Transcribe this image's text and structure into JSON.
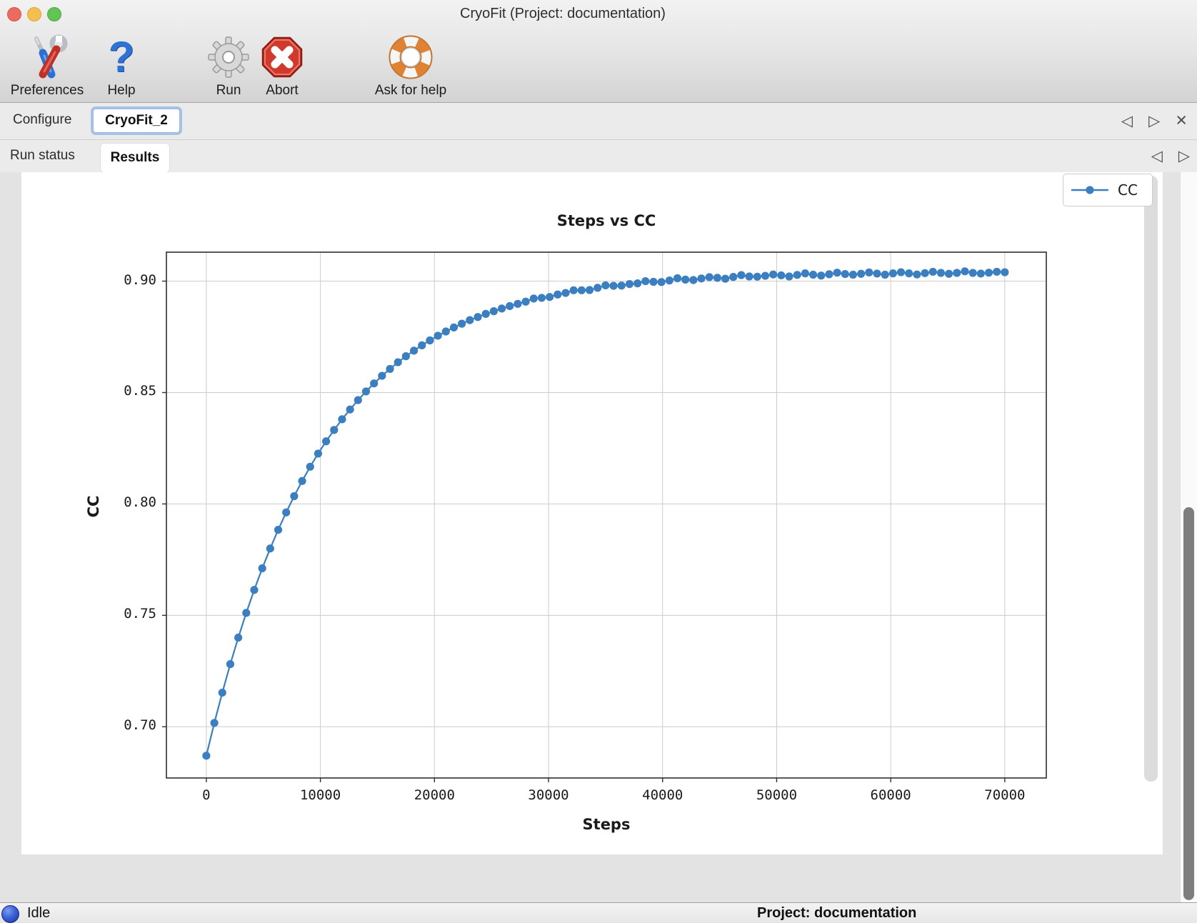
{
  "window": {
    "title": "CryoFit (Project: documentation)"
  },
  "toolbar": {
    "items": [
      {
        "label": "Preferences",
        "icon": "tools-icon"
      },
      {
        "label": "Help",
        "icon": "question-mark-icon"
      },
      {
        "label": "Run",
        "icon": "gear-icon"
      },
      {
        "label": "Abort",
        "icon": "stop-x-icon"
      },
      {
        "label": "Ask for help",
        "icon": "lifebuoy-icon"
      }
    ]
  },
  "icons": {
    "prev": "◁",
    "next": "▷",
    "close": "×",
    "help_glyph": "?"
  },
  "tabs_primary": {
    "items": [
      {
        "label": "Configure",
        "selected": false
      },
      {
        "label": "CryoFit_2",
        "selected": true
      }
    ]
  },
  "tabs_secondary": {
    "items": [
      {
        "label": "Run status",
        "selected": false
      },
      {
        "label": "Results",
        "selected": true
      }
    ]
  },
  "statusbar": {
    "state": "Idle",
    "project": "Project: documentation"
  },
  "colors": {
    "series_blue": "#3b7fc0",
    "grid": "#cccccc",
    "spine": "#2e2e2e",
    "traffic_red": "#ed6a5e",
    "traffic_yellow": "#f5bf4f",
    "traffic_green": "#61c454"
  },
  "chart_data": {
    "type": "line",
    "title": "Steps vs CC",
    "xlabel": "Steps",
    "ylabel": "CC",
    "grid": true,
    "legend_position": "upper right",
    "xlim": [
      -3500,
      73640
    ],
    "ylim": [
      0.677,
      0.913
    ],
    "xticks": [
      0,
      10000,
      20000,
      30000,
      40000,
      50000,
      60000,
      70000
    ],
    "xtick_labels": [
      "0",
      "10000",
      "20000",
      "30000",
      "40000",
      "50000",
      "60000",
      "70000"
    ],
    "yticks": [
      0.7,
      0.75,
      0.8,
      0.85,
      0.9
    ],
    "ytick_labels": [
      "0.70",
      "0.75",
      "0.80",
      "0.85",
      "0.90"
    ],
    "x": [
      0,
      700,
      1400,
      2100,
      2800,
      3500,
      4200,
      4900,
      5600,
      6300,
      7000,
      7700,
      8400,
      9100,
      9800,
      10500,
      11200,
      11900,
      12600,
      13300,
      14000,
      14700,
      15400,
      16100,
      16800,
      17500,
      18200,
      18900,
      19600,
      20300,
      21000,
      21700,
      22400,
      23100,
      23800,
      24500,
      25200,
      25900,
      26600,
      27300,
      28000,
      28700,
      29400,
      30100,
      30800,
      31500,
      32200,
      32900,
      33600,
      34300,
      35000,
      35700,
      36400,
      37100,
      37800,
      38500,
      39200,
      39900,
      40600,
      41300,
      42000,
      42700,
      43400,
      44100,
      44800,
      45500,
      46200,
      46900,
      47600,
      48300,
      49000,
      49700,
      50400,
      51100,
      51800,
      52500,
      53200,
      53900,
      54600,
      55300,
      56000,
      56700,
      57400,
      58100,
      58800,
      59500,
      60200,
      60900,
      61600,
      62300,
      63000,
      63700,
      64400,
      65100,
      65800,
      66500,
      67200,
      67900,
      68600,
      69300,
      70000
    ],
    "series": [
      {
        "name": "CC",
        "color": "#3b7fc0",
        "values": [
          0.687,
          0.7017,
          0.7153,
          0.7281,
          0.74,
          0.7511,
          0.7614,
          0.7711,
          0.78,
          0.7884,
          0.7962,
          0.8035,
          0.8103,
          0.8167,
          0.8226,
          0.8281,
          0.8332,
          0.838,
          0.8424,
          0.8466,
          0.8505,
          0.8541,
          0.8575,
          0.8606,
          0.8636,
          0.8663,
          0.8688,
          0.8712,
          0.8734,
          0.8755,
          0.8774,
          0.8792,
          0.8809,
          0.8825,
          0.8839,
          0.8853,
          0.8865,
          0.8877,
          0.8888,
          0.8898,
          0.8908,
          0.8922,
          0.8925,
          0.8929,
          0.894,
          0.8947,
          0.8959,
          0.8959,
          0.896,
          0.897,
          0.8981,
          0.8979,
          0.898,
          0.8987,
          0.899,
          0.9,
          0.8997,
          0.8996,
          0.9003,
          0.9013,
          0.9007,
          0.9005,
          0.9012,
          0.9018,
          0.9015,
          0.9011,
          0.9019,
          0.9027,
          0.9021,
          0.902,
          0.9024,
          0.903,
          0.9026,
          0.9021,
          0.9028,
          0.9035,
          0.9029,
          0.9025,
          0.9031,
          0.9038,
          0.9032,
          0.9029,
          0.9033,
          0.9039,
          0.9034,
          0.9029,
          0.9035,
          0.904,
          0.9035,
          0.903,
          0.9036,
          0.9042,
          0.9037,
          0.9033,
          0.9037,
          0.9044,
          0.9037,
          0.9034,
          0.9038,
          0.9042,
          0.904
        ]
      }
    ]
  }
}
